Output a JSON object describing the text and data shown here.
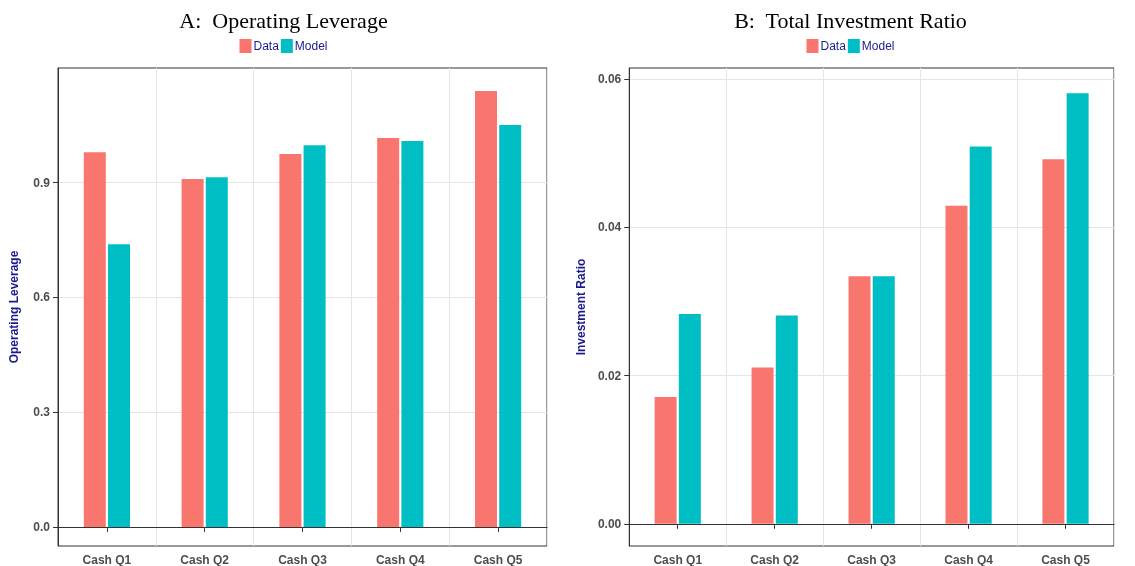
{
  "chart_data": [
    {
      "type": "bar",
      "title": "A:  Operating Leverage",
      "ylabel": "Operating Leverage",
      "categories": [
        "Cash Q1",
        "Cash Q2",
        "Cash Q3",
        "Cash Q4",
        "Cash Q5"
      ],
      "series": [
        {
          "name": "Data",
          "color": "#f8766d",
          "values": [
            0.98,
            0.91,
            0.975,
            1.017,
            1.14
          ]
        },
        {
          "name": "Model",
          "color": "#00bfc4",
          "values": [
            0.739,
            0.914,
            0.998,
            1.009,
            1.051
          ]
        }
      ],
      "ylim": [
        -0.05,
        1.2
      ],
      "yticks": [
        {
          "value": 0,
          "label": "0.0"
        },
        0.3,
        0.6,
        0.9
      ],
      "grid": true,
      "legend": "top"
    },
    {
      "type": "bar",
      "title": "B:  Total Investment Ratio",
      "ylabel": "Investment Ratio",
      "categories": [
        "Cash Q1",
        "Cash Q2",
        "Cash Q3",
        "Cash Q4",
        "Cash Q5"
      ],
      "series": [
        {
          "name": "Data",
          "color": "#f8766d",
          "values": [
            0.0171,
            0.0211,
            0.0334,
            0.0429,
            0.0492
          ]
        },
        {
          "name": "Model",
          "color": "#00bfc4",
          "values": [
            0.0283,
            0.0281,
            0.0334,
            0.0509,
            0.0581
          ]
        }
      ],
      "ylim": [
        -0.003,
        0.0615
      ],
      "yticks": [
        {
          "value": 0,
          "label": "0.00"
        },
        {
          "value": 0.02,
          "label": "0.02"
        },
        {
          "value": 0.04,
          "label": "0.04"
        },
        {
          "value": 0.06,
          "label": "0.06"
        }
      ],
      "grid": true,
      "legend": "top"
    }
  ]
}
